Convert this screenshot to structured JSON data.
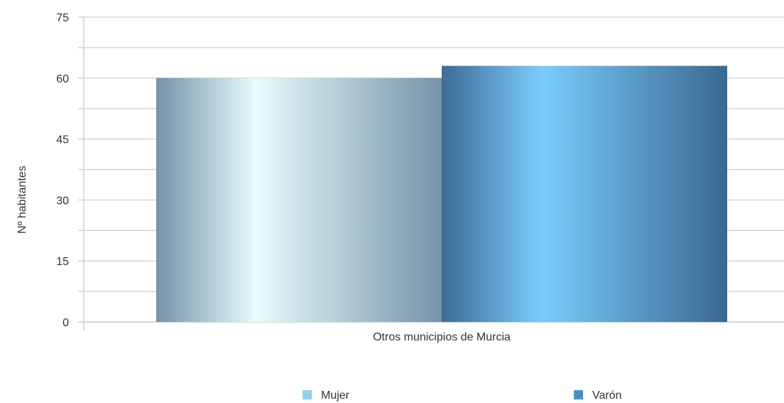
{
  "chart_data": {
    "type": "bar",
    "title": "",
    "xlabel": "",
    "ylabel": "Nº habitantes",
    "categories": [
      "Otros municipios de Murcia"
    ],
    "series": [
      {
        "name": "Mujer",
        "values": [
          60
        ],
        "color": "#8fd0ef"
      },
      {
        "name": "Varón",
        "values": [
          63
        ],
        "color": "#4a8fc4"
      }
    ],
    "ylim": [
      0,
      75
    ],
    "yticks": [
      0,
      15,
      30,
      45,
      60,
      75
    ],
    "grid": true,
    "legend_position": "bottom"
  }
}
